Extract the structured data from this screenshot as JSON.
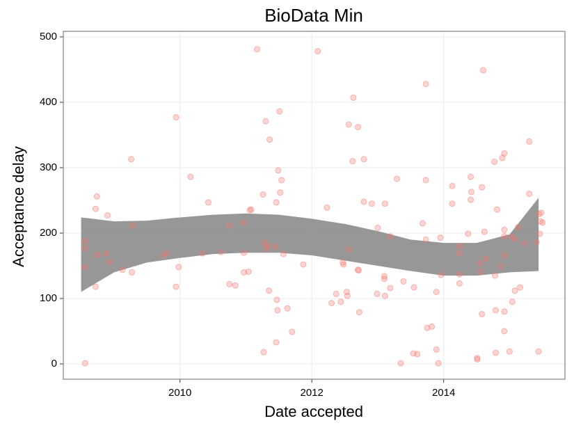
{
  "chart_data": {
    "type": "scatter",
    "title": "BioData Min",
    "xlabel": "Date accepted",
    "ylabel": "Acceptance delay",
    "xlim": [
      2008.23,
      2015.84
    ],
    "ylim": [
      -23.4,
      508.5
    ],
    "xticks": [
      2010,
      2012,
      2014
    ],
    "yticks": [
      0,
      100,
      200,
      300,
      400,
      500
    ],
    "grid": true,
    "points": {
      "color": "#f8766d",
      "x": [
        2008.56,
        2008.56,
        2008.56,
        2008.56,
        2008.72,
        2008.72,
        2008.74,
        2008.75,
        2008.88,
        2008.9,
        2008.93,
        2009.13,
        2009.26,
        2009.27,
        2009.28,
        2009.75,
        2009.79,
        2009.94,
        2009.94,
        2009.98,
        2010.16,
        2010.34,
        2010.43,
        2010.62,
        2010.75,
        2010.75,
        2010.84,
        2010.96,
        2010.97,
        2010.97,
        2011.04,
        2011.06,
        2011.08,
        2011.17,
        2011.26,
        2011.28,
        2011.31,
        2011.34,
        2011.27,
        2011.3,
        2011.36,
        2011.35,
        2011.45,
        2011.47,
        2011.48,
        2011.46,
        2011.49,
        2011.51,
        2011.52,
        2011.54,
        2011.57,
        2011.46,
        2011.63,
        2011.7,
        2011.87,
        2012.09,
        2012.23,
        2012.3,
        2012.37,
        2012.44,
        2012.47,
        2012.48,
        2012.53,
        2012.54,
        2012.56,
        2012.56,
        2012.62,
        2012.63,
        2012.7,
        2012.71,
        2012.7,
        2012.72,
        2012.79,
        2012.79,
        2012.91,
        2012.99,
        2013.0,
        2013.1,
        2013.1,
        2013.11,
        2013.11,
        2013.19,
        2013.19,
        2013.29,
        2013.35,
        2013.39,
        2013.54,
        2013.55,
        2013.6,
        2013.68,
        2013.73,
        2013.73,
        2013.73,
        2013.75,
        2013.82,
        2013.89,
        2013.89,
        2013.92,
        2013.95,
        2013.96,
        2014.13,
        2014.13,
        2014.24,
        2014.24,
        2014.24,
        2014.24,
        2014.37,
        2014.41,
        2014.41,
        2014.42,
        2014.51,
        2014.51,
        2014.55,
        2014.56,
        2014.58,
        2014.6,
        2014.58,
        2014.62,
        2014.64,
        2014.77,
        2014.78,
        2014.79,
        2014.79,
        2014.81,
        2014.87,
        2014.92,
        2014.92,
        2014.92,
        2014.92,
        2014.92,
        2014.89,
        2014.92,
        2015.0,
        2015.03,
        2015.04,
        2015.08,
        2015.08,
        2015.13,
        2015.16,
        2015.22,
        2015.3,
        2015.3,
        2015.41,
        2015.44,
        2015.45,
        2015.46,
        2015.47,
        2015.5,
        2015.48
      ],
      "y": [
        1,
        148,
        176,
        188,
        118,
        237,
        256,
        167,
        169,
        227,
        156,
        144,
        313,
        140,
        211,
        166,
        170,
        377,
        118,
        148,
        286,
        169,
        247,
        171,
        212,
        122,
        120,
        216,
        170,
        140,
        141,
        235,
        236,
        481,
        259,
        185,
        176,
        181,
        18,
        371,
        343,
        112,
        179,
        98,
        82,
        247,
        296,
        386,
        262,
        281,
        168,
        33,
        85,
        49,
        152,
        478,
        239,
        93,
        107,
        95,
        155,
        152,
        110,
        104,
        175,
        366,
        310,
        407,
        144,
        143,
        362,
        79,
        313,
        248,
        245,
        107,
        208,
        130,
        134,
        245,
        104,
        195,
        116,
        283,
        1,
        126,
        16,
        117,
        15,
        215,
        428,
        281,
        190,
        55,
        57,
        110,
        22,
        1,
        193,
        136,
        272,
        245,
        180,
        169,
        123,
        137,
        199,
        286,
        251,
        263,
        9,
        7,
        154,
        141,
        270,
        449,
        76,
        202,
        161,
        309,
        135,
        82,
        17,
        236,
        149,
        205,
        195,
        166,
        50,
        80,
        315,
        322,
        19,
        194,
        95,
        191,
        112,
        209,
        117,
        184,
        340,
        260,
        186,
        19,
        229,
        199,
        218,
        216,
        231
      ]
    },
    "band": {
      "color": "#8c8c8c",
      "x": [
        2008.5,
        2009,
        2009.5,
        2010,
        2010.5,
        2011,
        2011.5,
        2012,
        2012.5,
        2013,
        2013.5,
        2014,
        2014.5,
        2015,
        2015.44
      ],
      "upper": [
        224,
        218,
        219,
        224,
        228,
        230,
        228,
        222,
        214,
        203,
        190,
        185,
        185,
        198,
        254
      ],
      "lower": [
        110,
        140,
        155,
        162,
        168,
        170,
        170,
        166,
        158,
        150,
        142,
        135,
        135,
        140,
        142
      ]
    }
  }
}
